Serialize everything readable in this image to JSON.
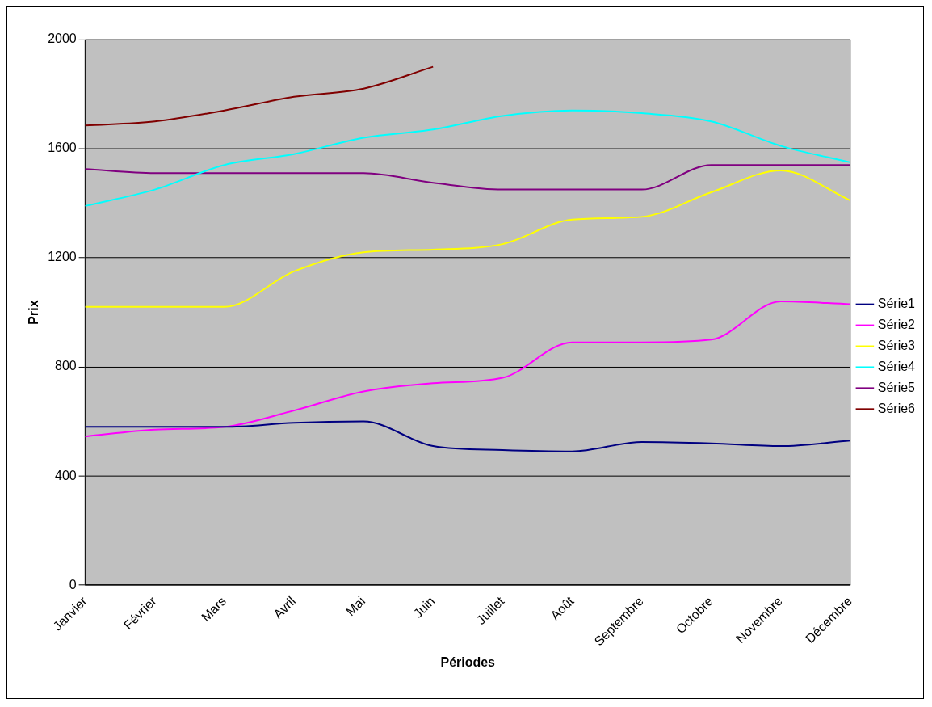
{
  "chart_data": {
    "type": "line",
    "xlabel": "Périodes",
    "ylabel": "Prix",
    "categories": [
      "Janvier",
      "Février",
      "Mars",
      "Avril",
      "Mai",
      "Juin",
      "Juillet",
      "Août",
      "Septembre",
      "Octobre",
      "Novembre",
      "Décembre"
    ],
    "series": [
      {
        "name": "Série1",
        "color": "#000080",
        "values": [
          580,
          580,
          580,
          595,
          600,
          510,
          495,
          490,
          525,
          520,
          510,
          530
        ]
      },
      {
        "name": "Série2",
        "color": "#ff00ff",
        "values": [
          545,
          570,
          580,
          640,
          710,
          740,
          760,
          890,
          890,
          900,
          1040,
          1030
        ]
      },
      {
        "name": "Série3",
        "color": "#ffff00",
        "values": [
          1020,
          1020,
          1020,
          1150,
          1220,
          1230,
          1250,
          1340,
          1350,
          1440,
          1520,
          1410
        ]
      },
      {
        "name": "Série4",
        "color": "#00ffff",
        "values": [
          1390,
          1450,
          1540,
          1580,
          1640,
          1670,
          1720,
          1740,
          1730,
          1700,
          1610,
          1550
        ]
      },
      {
        "name": "Série5",
        "color": "#800080",
        "values": [
          1525,
          1510,
          1510,
          1510,
          1510,
          1475,
          1450,
          1450,
          1450,
          1540,
          1540,
          1540
        ]
      },
      {
        "name": "Série6",
        "color": "#800000",
        "values": [
          1685,
          1700,
          1740,
          1790,
          1820,
          1900,
          null,
          null,
          null,
          null,
          null,
          null
        ]
      }
    ],
    "ylim": [
      0,
      2000
    ],
    "yticks": [
      0,
      400,
      800,
      1200,
      1600,
      2000
    ],
    "grid": "y",
    "legend": "right",
    "marker": "none",
    "line_style": "solid"
  }
}
